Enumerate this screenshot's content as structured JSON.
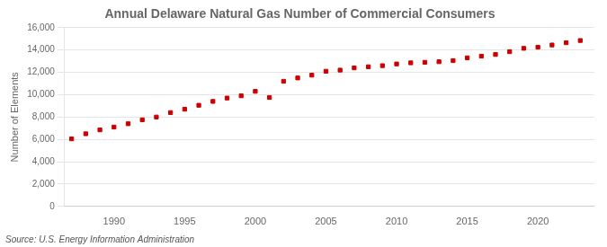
{
  "chart_data": {
    "type": "scatter",
    "title": "Annual Delaware Natural Gas Number of Commercial Consumers",
    "ylabel": "Number of Elements",
    "source": "Source: U.S. Energy Information Administration",
    "x": [
      1987,
      1988,
      1989,
      1990,
      1991,
      1992,
      1993,
      1994,
      1995,
      1996,
      1997,
      1998,
      1999,
      2000,
      2001,
      2002,
      2003,
      2004,
      2005,
      2006,
      2007,
      2008,
      2009,
      2010,
      2011,
      2012,
      2013,
      2014,
      2015,
      2016,
      2017,
      2018,
      2019,
      2020,
      2021,
      2022,
      2023
    ],
    "values": [
      6050,
      6500,
      6850,
      7100,
      7400,
      7750,
      8000,
      8400,
      8700,
      9050,
      9400,
      9700,
      9900,
      10300,
      9750,
      11200,
      11500,
      11750,
      12100,
      12200,
      12400,
      12500,
      12600,
      12750,
      12850,
      12900,
      12950,
      13050,
      13300,
      13450,
      13600,
      13850,
      14150,
      14250,
      14450,
      14650,
      14850
    ],
    "color": "#cc0000",
    "marker": "square",
    "grid": "y",
    "xlim": [
      1986.5,
      2024
    ],
    "xticks": [
      1990,
      1995,
      2000,
      2005,
      2010,
      2015,
      2020
    ],
    "ylim": [
      0,
      16000
    ],
    "yticks": [
      0,
      {
        "value": 2000,
        "label": "2,000"
      },
      {
        "value": 4000,
        "label": "4,000"
      },
      {
        "value": 6000,
        "label": "6,000"
      },
      {
        "value": 8000,
        "label": "8,000"
      },
      {
        "value": 10000,
        "label": "10,000"
      },
      {
        "value": 12000,
        "label": "12,000"
      },
      {
        "value": 14000,
        "label": "14,000"
      },
      {
        "value": 16000,
        "label": "16,000"
      }
    ]
  }
}
